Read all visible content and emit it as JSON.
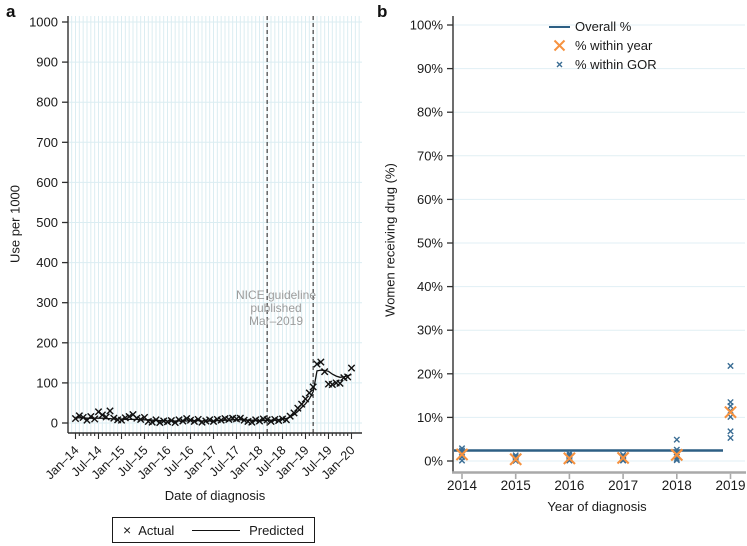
{
  "panels": {
    "a": {
      "label": "a",
      "y_axis_title": "Use per 1000",
      "x_axis_title": "Date of diagnosis",
      "y_ticks": [
        "0",
        "100",
        "200",
        "300",
        "400",
        "500",
        "600",
        "700",
        "800",
        "900",
        "1000"
      ],
      "x_ticks": [
        "Jan–14",
        "Jul–14",
        "Jan–15",
        "Jul–15",
        "Jan–16",
        "Jul–16",
        "Jan–17",
        "Jul–17",
        "Jan–18",
        "Jul–18",
        "Jan–19",
        "Jul–19",
        "Jan–20"
      ],
      "annotation": [
        "NICE guideline",
        "published",
        "Mar–2019"
      ],
      "legend": {
        "marker": "×",
        "actual": "Actual",
        "predicted": "Predicted"
      }
    },
    "b": {
      "label": "b",
      "y_axis_title": "Women receiving drug (%)",
      "x_axis_title": "Year of diagnosis",
      "y_ticks": [
        "0%",
        "10%",
        "20%",
        "30%",
        "40%",
        "50%",
        "60%",
        "70%",
        "80%",
        "90%",
        "100%"
      ],
      "x_ticks": [
        "2014",
        "2015",
        "2016",
        "2017",
        "2018",
        "2019"
      ],
      "legend": [
        {
          "label": "Overall %"
        },
        {
          "label": "% within year"
        },
        {
          "label": "% within GOR"
        }
      ]
    }
  },
  "colors": {
    "grid_a": "#dbedf2",
    "grid_b": "#e1eff4",
    "ink": "#1a1a1a",
    "marker_a": "#111111",
    "dashed_reference": "#4d4d4d",
    "annotation_gray": "#9c9c9c",
    "overall_line_navy": "#2d5f84",
    "within_year_orange": "#f69240",
    "within_gor_blue": "#3a6d94",
    "axis_b_x_gray": "#a9a9a9"
  },
  "chart_data": [
    {
      "panel": "a",
      "type": "scatter",
      "title": "",
      "xlabel": "Date of diagnosis",
      "ylabel": "Use per 1000",
      "ylim": [
        0,
        1000
      ],
      "y_tick_step": 100,
      "x_unit": "months from Jan-2014 (0..72)",
      "x_tick_labels": [
        "Jan–14",
        "Jul–14",
        "Jan–15",
        "Jul–15",
        "Jan–16",
        "Jul–16",
        "Jan–17",
        "Jul–17",
        "Jan–18",
        "Jul–18",
        "Jan–19",
        "Jul–19",
        "Jan–20"
      ],
      "x_tick_month_index": [
        0,
        6,
        12,
        18,
        24,
        30,
        36,
        42,
        48,
        54,
        60,
        66,
        72
      ],
      "grid": "both, light blue, monthly vertical + every 100 horizontal",
      "reference_lines": [
        {
          "style": "dashed",
          "month_index": 50,
          "date": "Mar-2018"
        },
        {
          "style": "dashed",
          "month_index": 62,
          "date": "Mar-2019"
        }
      ],
      "annotation": "NICE guideline published Mar–2019",
      "series": [
        {
          "name": "Actual",
          "type": "scatter",
          "marker": "x",
          "values": [
            11,
            18,
            14,
            7,
            16,
            10,
            28,
            20,
            15,
            30,
            12,
            8,
            7,
            13,
            16,
            21,
            12,
            9,
            14,
            4,
            2,
            8,
            1,
            5,
            3,
            6,
            1,
            8,
            5,
            11,
            7,
            4,
            9,
            2,
            5,
            8,
            4,
            9,
            7,
            11,
            9,
            12,
            10,
            12,
            7,
            4,
            2,
            8,
            5,
            10,
            8,
            4,
            9,
            6,
            10,
            8,
            17,
            25,
            37,
            47,
            60,
            75,
            90,
            147,
            152,
            128,
            97,
            96,
            100,
            99,
            113,
            115,
            137
          ]
        },
        {
          "name": "Predicted",
          "type": "line",
          "values": [
            14,
            13,
            13,
            12,
            12,
            12,
            12,
            12,
            11,
            11,
            10,
            10,
            10,
            9,
            9,
            9,
            9,
            8,
            8,
            8,
            7,
            7,
            6,
            6,
            5,
            5,
            5,
            5,
            5,
            5,
            6,
            6,
            6,
            5,
            5,
            5,
            5,
            6,
            6,
            7,
            7,
            8,
            8,
            8,
            8,
            7,
            7,
            6,
            6,
            6,
            7,
            7,
            7,
            8,
            9,
            11,
            15,
            21,
            29,
            39,
            48,
            60,
            78,
            130,
            132,
            131,
            129,
            122,
            117,
            114,
            115,
            118,
            121
          ]
        }
      ],
      "legend_position": "below plot, boxed"
    },
    {
      "panel": "b",
      "type": "scatter",
      "title": "",
      "xlabel": "Year of diagnosis",
      "ylabel": "Women receiving drug (%)",
      "ylim": [
        0,
        100
      ],
      "y_tick_step": 10,
      "categories": [
        "2014",
        "2015",
        "2016",
        "2017",
        "2018",
        "2019"
      ],
      "grid": "horizontal only, every 10%, light blue",
      "series": [
        {
          "name": "Overall %",
          "type": "hline",
          "value": 2.4
        },
        {
          "name": "% within year",
          "type": "scatter",
          "marker": "X-large-orange",
          "values": [
            1.5,
            0.4,
            0.6,
            0.7,
            1.4,
            11.2
          ]
        },
        {
          "name": "% within GOR",
          "type": "scatter",
          "marker": "x-small-blue",
          "values_per_category": [
            [
              2.9,
              2.4,
              1.9,
              1.4,
              0.9,
              0.1
            ],
            [
              1.3,
              0.9,
              0.6,
              0.4,
              0.2,
              0.05
            ],
            [
              1.7,
              1.3,
              0.9,
              0.6,
              0.3,
              0.1
            ],
            [
              1.4,
              1.0,
              0.7,
              0.5,
              0.2,
              0.1
            ],
            [
              4.9,
              2.6,
              2.0,
              1.5,
              1.0,
              0.5,
              0.2
            ],
            [
              21.8,
              13.5,
              12.6,
              11.5,
              10.1,
              6.8,
              5.3
            ]
          ]
        }
      ],
      "legend_position": "top right inside plot, no border"
    }
  ]
}
